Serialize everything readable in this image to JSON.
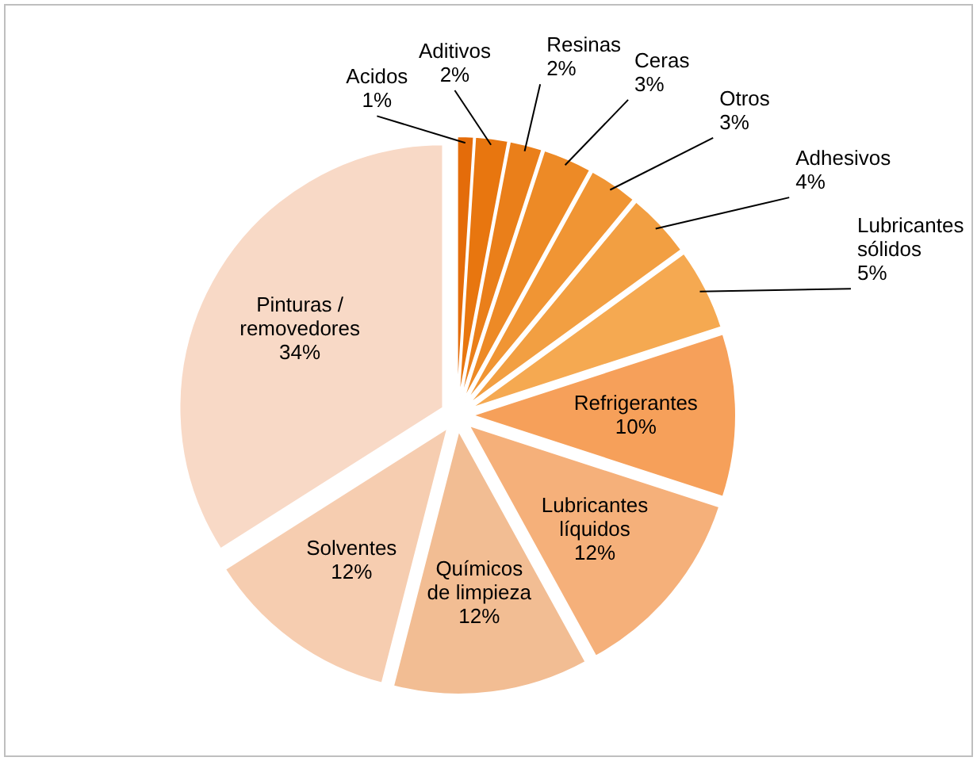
{
  "chart_data": {
    "type": "pie",
    "categories": [
      "Acidos",
      "Aditivos",
      "Resinas",
      "Ceras",
      "Otros",
      "Adhesivos",
      "Lubricantes sólidos",
      "Refrigerantes",
      "Lubricantes líquidos",
      "Químicos de limpieza",
      "Solventes",
      "Pinturas / removedores"
    ],
    "values": [
      1,
      2,
      2,
      3,
      3,
      4,
      5,
      10,
      12,
      12,
      12,
      34
    ],
    "value_labels": [
      "1%",
      "2%",
      "2%",
      "3%",
      "3%",
      "4%",
      "5%",
      "10%",
      "12%",
      "12%",
      "12%",
      "34%"
    ],
    "colors": [
      "#e46c0a",
      "#e8760f",
      "#ea7f1a",
      "#ed8a26",
      "#f09534",
      "#f29f42",
      "#f5a951",
      "#f6a05a",
      "#f5b07a",
      "#f2bd93",
      "#f6cdb0",
      "#f8d9c6"
    ]
  }
}
